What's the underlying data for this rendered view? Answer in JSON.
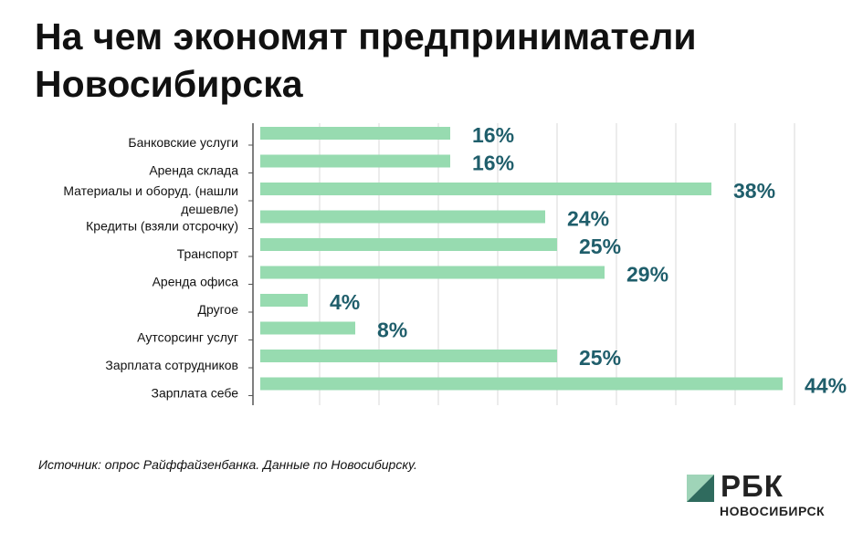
{
  "title": "На чем экономят предприниматели Новосибирска",
  "source": "Источник: опрос Райффайзенбанка. Данные по Новосибирску.",
  "logo": {
    "brand": "РБК",
    "city": "НОВОСИБИРСК"
  },
  "colors": {
    "bar": "#97dbb0",
    "value": "#1f5e6b",
    "grid": "#d8d8d8",
    "axis": "#555555"
  },
  "chart_data": {
    "type": "bar",
    "orientation": "horizontal",
    "categories": [
      "Банковские услуги",
      "Аренда склада",
      "Материалы и оборуд. (нашли дешевле)",
      "Кредиты (взяли отсрочку)",
      "Транспорт",
      "Аренда офиса",
      "Другое",
      "Аутсорсинг услуг",
      "Зарплата сотрудников",
      "Зарплата себе"
    ],
    "values": [
      16,
      16,
      38,
      24,
      25,
      29,
      4,
      8,
      25,
      44
    ],
    "value_labels": [
      "16%",
      "16%",
      "38%",
      "24%",
      "25%",
      "29%",
      "4%",
      "8%",
      "25%",
      "44%"
    ],
    "xlim": [
      0,
      45
    ]
  }
}
